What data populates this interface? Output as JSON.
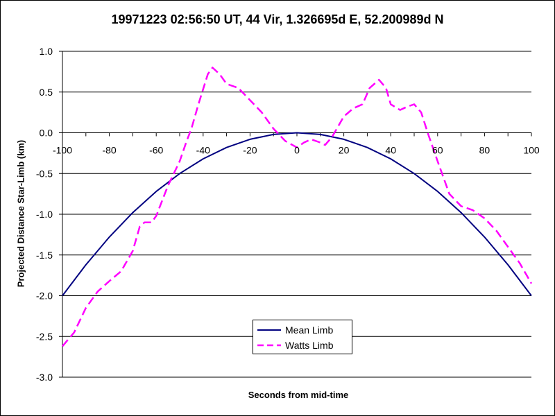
{
  "chart_data": {
    "type": "line",
    "title": "19971223 02:56:50 UT, 44 Vir, 1.326695d E, 52.200989d N",
    "xlabel": "Seconds from mid-time",
    "ylabel": "Projected Distance Star-Limb (km)",
    "xlim": [
      -100,
      100
    ],
    "ylim": [
      -3.0,
      1.0
    ],
    "x_ticks": [
      "-100",
      "-80",
      "-60",
      "-40",
      "-20",
      "0",
      "20",
      "40",
      "60",
      "80",
      "100"
    ],
    "y_ticks": [
      "1.0",
      "0.5",
      "0.0",
      "-0.5",
      "-1.0",
      "-1.5",
      "-2.0",
      "-2.5",
      "-3.0"
    ],
    "grid": "horizontal",
    "legend_position": "bottom-center",
    "series": [
      {
        "name": "Mean Limb",
        "color": "#000080",
        "style": "solid",
        "points": [
          [
            -100,
            -2.0
          ],
          [
            -90,
            -1.62
          ],
          [
            -80,
            -1.28
          ],
          [
            -70,
            -0.98
          ],
          [
            -60,
            -0.72
          ],
          [
            -50,
            -0.5
          ],
          [
            -40,
            -0.32
          ],
          [
            -30,
            -0.18
          ],
          [
            -20,
            -0.08
          ],
          [
            -10,
            -0.02
          ],
          [
            0,
            0.0
          ],
          [
            10,
            -0.02
          ],
          [
            20,
            -0.08
          ],
          [
            30,
            -0.18
          ],
          [
            40,
            -0.32
          ],
          [
            50,
            -0.5
          ],
          [
            60,
            -0.72
          ],
          [
            70,
            -0.98
          ],
          [
            80,
            -1.28
          ],
          [
            90,
            -1.62
          ],
          [
            100,
            -2.0
          ]
        ]
      },
      {
        "name": "Watts Limb",
        "color": "#FF00FF",
        "style": "dashed",
        "points": [
          [
            -100,
            -2.62
          ],
          [
            -95,
            -2.45
          ],
          [
            -90,
            -2.15
          ],
          [
            -85,
            -1.95
          ],
          [
            -80,
            -1.82
          ],
          [
            -75,
            -1.7
          ],
          [
            -70,
            -1.45
          ],
          [
            -67,
            -1.15
          ],
          [
            -65,
            -1.1
          ],
          [
            -62,
            -1.1
          ],
          [
            -60,
            -1.02
          ],
          [
            -55,
            -0.65
          ],
          [
            -50,
            -0.35
          ],
          [
            -47,
            -0.1
          ],
          [
            -45,
            0.05
          ],
          [
            -42,
            0.35
          ],
          [
            -38,
            0.72
          ],
          [
            -36,
            0.8
          ],
          [
            -33,
            0.72
          ],
          [
            -30,
            0.6
          ],
          [
            -25,
            0.55
          ],
          [
            -20,
            0.4
          ],
          [
            -15,
            0.25
          ],
          [
            -10,
            0.05
          ],
          [
            -5,
            -0.1
          ],
          [
            0,
            -0.18
          ],
          [
            3,
            -0.12
          ],
          [
            6,
            -0.08
          ],
          [
            10,
            -0.12
          ],
          [
            12,
            -0.15
          ],
          [
            15,
            -0.05
          ],
          [
            20,
            0.2
          ],
          [
            24,
            0.3
          ],
          [
            28,
            0.35
          ],
          [
            31,
            0.55
          ],
          [
            35,
            0.65
          ],
          [
            38,
            0.55
          ],
          [
            40,
            0.35
          ],
          [
            44,
            0.28
          ],
          [
            47,
            0.32
          ],
          [
            50,
            0.35
          ],
          [
            53,
            0.25
          ],
          [
            56,
            -0.02
          ],
          [
            60,
            -0.35
          ],
          [
            65,
            -0.75
          ],
          [
            70,
            -0.9
          ],
          [
            75,
            -0.95
          ],
          [
            80,
            -1.05
          ],
          [
            85,
            -1.2
          ],
          [
            90,
            -1.4
          ],
          [
            95,
            -1.6
          ],
          [
            100,
            -1.85
          ]
        ]
      }
    ]
  }
}
